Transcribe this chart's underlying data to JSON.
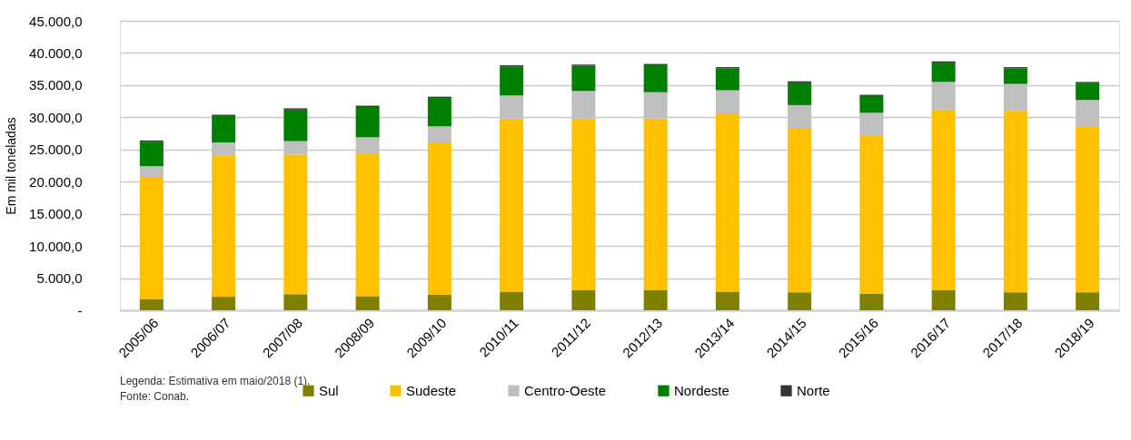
{
  "chart_data": {
    "type": "bar",
    "stacked": true,
    "ylabel": "Em mil toneladas",
    "categories": [
      "2005/06",
      "2006/07",
      "2007/08",
      "2008/09",
      "2009/10",
      "2010/11",
      "2011/12",
      "2012/13",
      "2013/14",
      "2014/15",
      "2015/16",
      "2016/17",
      "2017/18",
      "2018/19"
    ],
    "series": [
      {
        "name": "Sul",
        "color": "#808000",
        "values": [
          1700,
          2100,
          2500,
          2200,
          2400,
          2900,
          3100,
          3100,
          2900,
          2800,
          2600,
          3100,
          2800,
          2800
        ]
      },
      {
        "name": "Sudeste",
        "color": "#ffc000",
        "values": [
          18900,
          21900,
          21700,
          22200,
          23700,
          26900,
          26700,
          26700,
          27700,
          25400,
          24600,
          28100,
          28200,
          25700
        ]
      },
      {
        "name": "Centro-Oeste",
        "color": "#bfbfbf",
        "values": [
          1800,
          2100,
          2100,
          2500,
          2500,
          3600,
          4300,
          4100,
          3600,
          3700,
          3500,
          4300,
          4200,
          4200
        ]
      },
      {
        "name": "Nordeste",
        "color": "#008000",
        "values": [
          3800,
          4100,
          4900,
          4700,
          4400,
          4500,
          3900,
          4200,
          3400,
          3500,
          2600,
          3000,
          2400,
          2600
        ]
      },
      {
        "name": "Norte",
        "color": "#333333",
        "values": [
          200,
          200,
          200,
          200,
          200,
          200,
          200,
          200,
          200,
          200,
          200,
          200,
          200,
          200
        ]
      }
    ],
    "ylim": [
      0,
      45000
    ],
    "yticks": [
      {
        "value": 0,
        "label": "-"
      },
      {
        "value": 5000,
        "label": "5.000,0"
      },
      {
        "value": 10000,
        "label": "10.000,0"
      },
      {
        "value": 15000,
        "label": "15.000,0"
      },
      {
        "value": 20000,
        "label": "20.000,0"
      },
      {
        "value": 25000,
        "label": "25.000,0"
      },
      {
        "value": 30000,
        "label": "30.000,0"
      },
      {
        "value": 35000,
        "label": "35.000,0"
      },
      {
        "value": 40000,
        "label": "40.000,0"
      },
      {
        "value": 45000,
        "label": "45.000,0"
      }
    ],
    "grid": "y",
    "legend": "bottom",
    "annotations": [
      "Legenda: Estimativa em maio/2018 (1).",
      "Fonte: Conab."
    ]
  }
}
